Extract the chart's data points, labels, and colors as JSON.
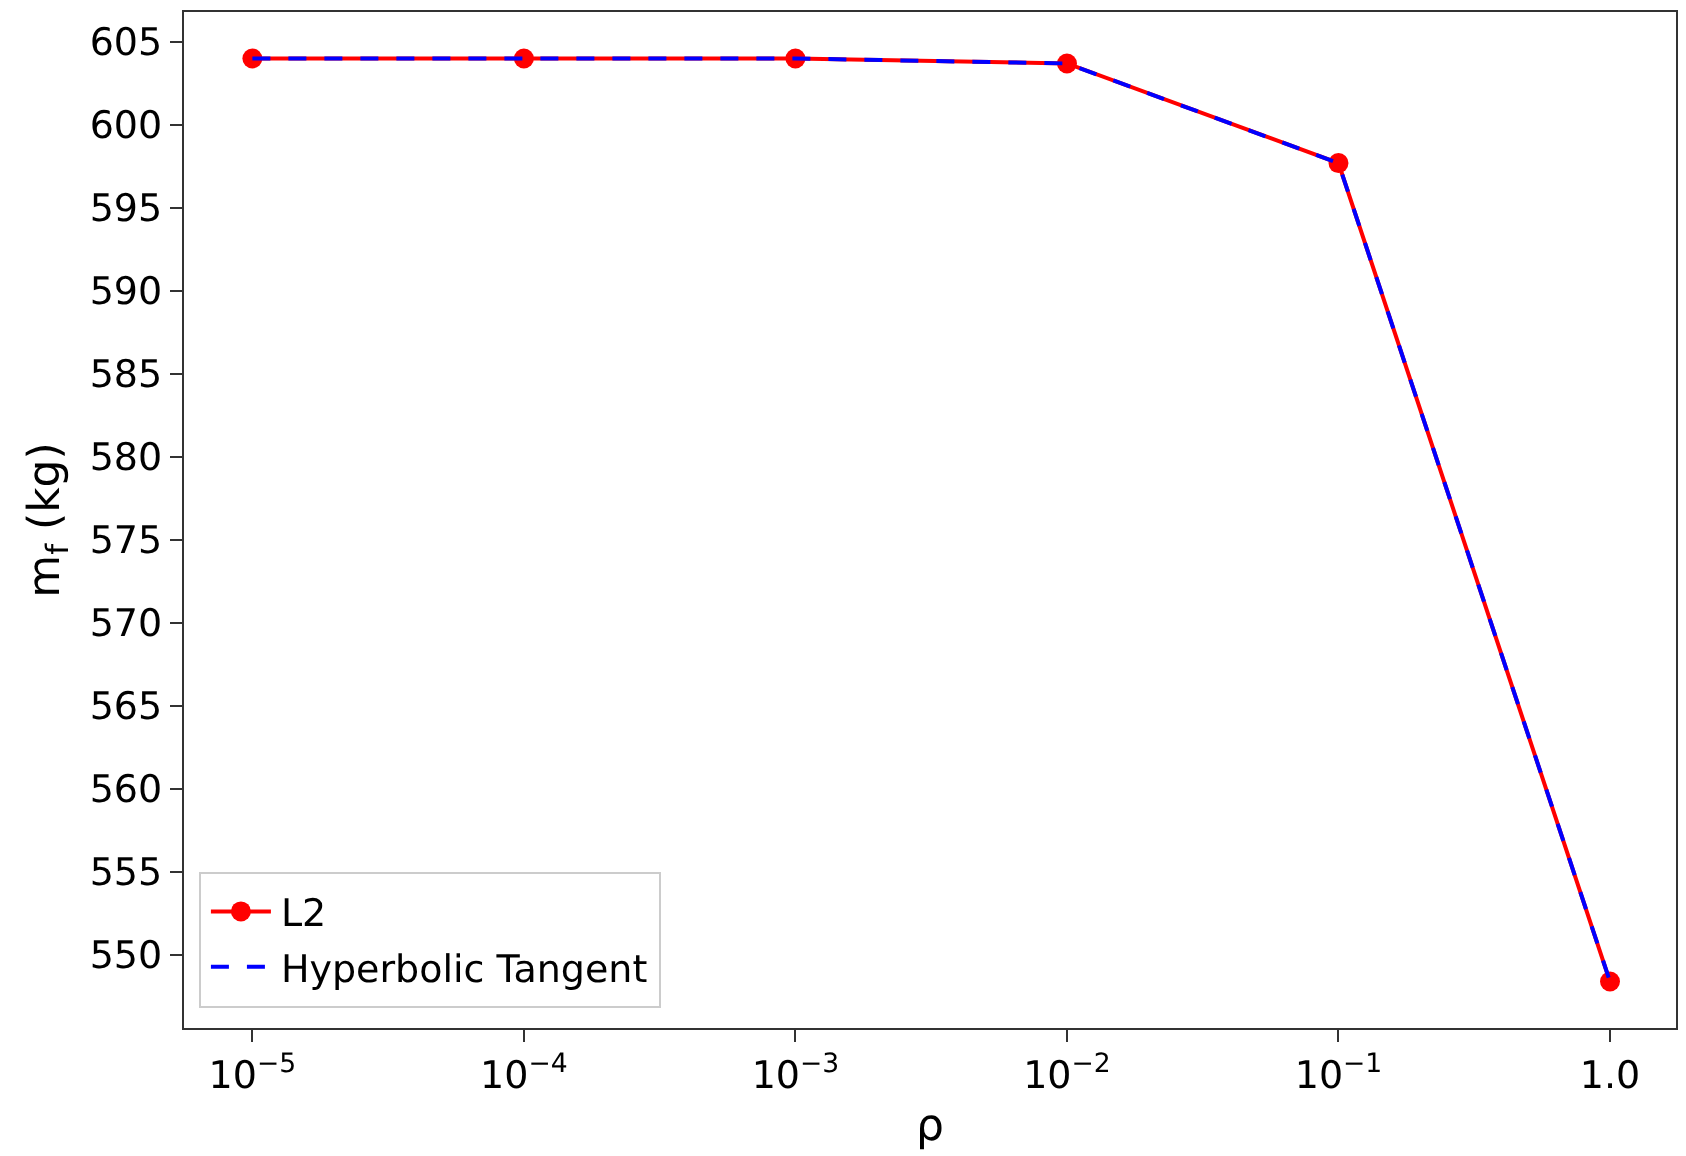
{
  "chart_data": {
    "type": "line",
    "xlabel": "ρ",
    "ylabel": "m$_{f}$ (kg)",
    "x": [
      1e-05,
      0.0001,
      0.001,
      0.01,
      0.1,
      1.0
    ],
    "log": "x",
    "xlim": [
      5.6e-06,
      1.75
    ],
    "xticks": [
      {
        "value": 1e-05,
        "label": "10$^{−5}$"
      },
      {
        "value": 0.0001,
        "label": "10$^{−4}$"
      },
      {
        "value": 0.001,
        "label": "10$^{−3}$"
      },
      {
        "value": 0.01,
        "label": "10$^{−2}$"
      },
      {
        "value": 0.1,
        "label": "10$^{−1}$"
      },
      {
        "value": 1.0,
        "label": "1.0"
      }
    ],
    "ylim": [
      545.6,
      606.8
    ],
    "yticks": [
      550,
      555,
      560,
      565,
      570,
      575,
      580,
      585,
      590,
      595,
      600,
      605
    ],
    "legend": "bottom left",
    "series": [
      {
        "name": "L2",
        "color": "#ff0000",
        "marker": "circle",
        "line_style": "solid",
        "values": [
          604.0,
          604.0,
          604.0,
          603.7,
          597.7,
          548.4
        ]
      },
      {
        "name": "Hyperbolic Tangent",
        "color": "#0000ff",
        "marker": "none",
        "line_style": "dashed",
        "values": [
          604.0,
          604.0,
          604.0,
          603.7,
          597.7,
          548.4
        ]
      }
    ]
  }
}
